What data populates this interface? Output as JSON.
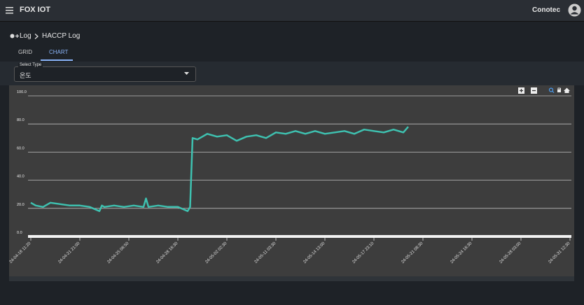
{
  "header": {
    "brand": "FOX IOT",
    "user": "Conotec"
  },
  "breadcrumb": [
    "Log",
    "HACCP Log"
  ],
  "tabs": [
    "GRID",
    "CHART"
  ],
  "select": {
    "label": "Select Type",
    "value": "온도"
  },
  "chart_data": {
    "type": "line",
    "xlim": [
      0,
      11
    ],
    "xticks": [
      {
        "value": 0,
        "label": "24-04-18 11:20"
      },
      {
        "value": 1,
        "label": "24-04-21 21:00"
      },
      {
        "value": 2,
        "label": "24-04-25 06:50"
      },
      {
        "value": 3,
        "label": "24-04-28 16:30"
      },
      {
        "value": 4,
        "label": "24-05-02 02:30"
      },
      {
        "value": 5,
        "label": "24-05-11 03:30"
      },
      {
        "value": 6,
        "label": "24-05-14 13:00"
      },
      {
        "value": 7,
        "label": "24-05-17 23:10"
      },
      {
        "value": 8,
        "label": "24-05-21 08:30"
      },
      {
        "value": 9,
        "label": "24-05-24 16:30"
      },
      {
        "value": 10,
        "label": "24-05-28 03:00"
      },
      {
        "value": 11,
        "label": "24-05-31 12:30"
      }
    ],
    "ylim": [
      0,
      100
    ],
    "yticks": [
      {
        "value": 0,
        "label": "0.0"
      },
      {
        "value": 20,
        "label": "20.0"
      },
      {
        "value": 40,
        "label": "40.0"
      },
      {
        "value": 60,
        "label": "60.0"
      },
      {
        "value": 80,
        "label": "80.0"
      },
      {
        "value": 100,
        "label": "100.0"
      }
    ],
    "grid": true,
    "x": [
      0,
      0.1,
      0.25,
      0.4,
      0.6,
      0.8,
      1.0,
      1.2,
      1.4,
      1.45,
      1.5,
      1.7,
      1.9,
      2.1,
      2.3,
      2.35,
      2.4,
      2.6,
      2.8,
      3.0,
      3.2,
      3.25,
      3.3,
      3.4,
      3.6,
      3.8,
      4.0,
      4.2,
      4.4,
      4.6,
      4.8,
      4.9,
      5.0,
      5.2,
      5.4,
      5.6,
      5.8,
      6.0,
      6.2,
      6.4,
      6.6,
      6.8,
      7.0,
      7.2,
      7.4,
      7.6,
      7.7
    ],
    "series": [
      {
        "color": "#3ec1b0",
        "values": [
          24,
          22,
          21,
          24,
          23,
          22,
          22,
          21,
          18,
          22,
          21,
          22,
          21,
          22,
          21,
          27,
          21,
          22,
          21,
          21,
          18,
          21,
          70,
          69,
          73,
          71,
          72,
          68,
          71,
          72,
          70,
          72,
          74,
          73,
          75,
          73,
          75,
          73,
          74,
          75,
          73,
          76,
          75,
          74,
          76,
          74,
          78
        ]
      }
    ]
  }
}
